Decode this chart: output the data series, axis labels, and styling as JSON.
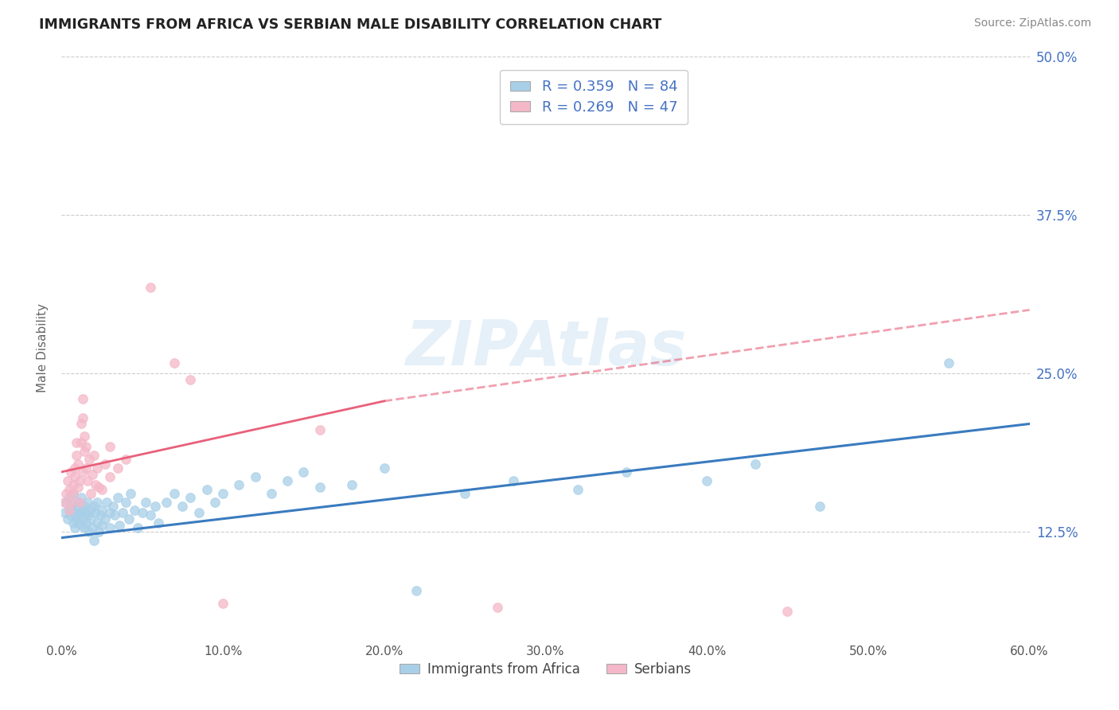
{
  "title": "IMMIGRANTS FROM AFRICA VS SERBIAN MALE DISABILITY CORRELATION CHART",
  "source": "Source: ZipAtlas.com",
  "ylabel": "Male Disability",
  "legend_bottom": [
    "Immigrants from Africa",
    "Serbians"
  ],
  "blue_R": 0.359,
  "blue_N": 84,
  "pink_R": 0.269,
  "pink_N": 47,
  "xlim": [
    0.0,
    0.6
  ],
  "ylim": [
    0.04,
    0.5
  ],
  "yticks": [
    0.125,
    0.25,
    0.375,
    0.5
  ],
  "ytick_labels": [
    "12.5%",
    "25.0%",
    "37.5%",
    "50.0%"
  ],
  "xticks": [
    0.0,
    0.1,
    0.2,
    0.3,
    0.4,
    0.5,
    0.6
  ],
  "xtick_labels": [
    "0.0%",
    "10.0%",
    "20.0%",
    "30.0%",
    "40.0%",
    "50.0%",
    "60.0%"
  ],
  "background": "#ffffff",
  "blue_color": "#a8cfe8",
  "pink_color": "#f4b8c8",
  "blue_line_color": "#3a7bbf",
  "pink_line_color": "#e8607a",
  "blue_scatter": [
    [
      0.002,
      0.14
    ],
    [
      0.003,
      0.148
    ],
    [
      0.004,
      0.135
    ],
    [
      0.005,
      0.152
    ],
    [
      0.005,
      0.142
    ],
    [
      0.006,
      0.138
    ],
    [
      0.006,
      0.145
    ],
    [
      0.007,
      0.132
    ],
    [
      0.007,
      0.155
    ],
    [
      0.008,
      0.14
    ],
    [
      0.008,
      0.128
    ],
    [
      0.009,
      0.145
    ],
    [
      0.009,
      0.135
    ],
    [
      0.01,
      0.148
    ],
    [
      0.01,
      0.132
    ],
    [
      0.011,
      0.14
    ],
    [
      0.011,
      0.138
    ],
    [
      0.012,
      0.152
    ],
    [
      0.012,
      0.13
    ],
    [
      0.013,
      0.142
    ],
    [
      0.013,
      0.135
    ],
    [
      0.014,
      0.128
    ],
    [
      0.014,
      0.145
    ],
    [
      0.015,
      0.14
    ],
    [
      0.015,
      0.132
    ],
    [
      0.016,
      0.148
    ],
    [
      0.016,
      0.138
    ],
    [
      0.017,
      0.125
    ],
    [
      0.018,
      0.142
    ],
    [
      0.018,
      0.135
    ],
    [
      0.019,
      0.128
    ],
    [
      0.02,
      0.145
    ],
    [
      0.02,
      0.118
    ],
    [
      0.021,
      0.14
    ],
    [
      0.022,
      0.132
    ],
    [
      0.022,
      0.148
    ],
    [
      0.023,
      0.125
    ],
    [
      0.024,
      0.138
    ],
    [
      0.025,
      0.142
    ],
    [
      0.025,
      0.13
    ],
    [
      0.027,
      0.135
    ],
    [
      0.028,
      0.148
    ],
    [
      0.03,
      0.14
    ],
    [
      0.03,
      0.128
    ],
    [
      0.032,
      0.145
    ],
    [
      0.033,
      0.138
    ],
    [
      0.035,
      0.152
    ],
    [
      0.036,
      0.13
    ],
    [
      0.038,
      0.14
    ],
    [
      0.04,
      0.148
    ],
    [
      0.042,
      0.135
    ],
    [
      0.043,
      0.155
    ],
    [
      0.045,
      0.142
    ],
    [
      0.047,
      0.128
    ],
    [
      0.05,
      0.14
    ],
    [
      0.052,
      0.148
    ],
    [
      0.055,
      0.138
    ],
    [
      0.058,
      0.145
    ],
    [
      0.06,
      0.132
    ],
    [
      0.065,
      0.148
    ],
    [
      0.07,
      0.155
    ],
    [
      0.075,
      0.145
    ],
    [
      0.08,
      0.152
    ],
    [
      0.085,
      0.14
    ],
    [
      0.09,
      0.158
    ],
    [
      0.095,
      0.148
    ],
    [
      0.1,
      0.155
    ],
    [
      0.11,
      0.162
    ],
    [
      0.12,
      0.168
    ],
    [
      0.13,
      0.155
    ],
    [
      0.14,
      0.165
    ],
    [
      0.15,
      0.172
    ],
    [
      0.16,
      0.16
    ],
    [
      0.18,
      0.162
    ],
    [
      0.2,
      0.175
    ],
    [
      0.22,
      0.078
    ],
    [
      0.25,
      0.155
    ],
    [
      0.28,
      0.165
    ],
    [
      0.32,
      0.158
    ],
    [
      0.35,
      0.172
    ],
    [
      0.4,
      0.165
    ],
    [
      0.43,
      0.178
    ],
    [
      0.47,
      0.145
    ],
    [
      0.55,
      0.258
    ]
  ],
  "pink_scatter": [
    [
      0.002,
      0.148
    ],
    [
      0.003,
      0.155
    ],
    [
      0.004,
      0.165
    ],
    [
      0.005,
      0.142
    ],
    [
      0.005,
      0.158
    ],
    [
      0.006,
      0.172
    ],
    [
      0.006,
      0.148
    ],
    [
      0.007,
      0.162
    ],
    [
      0.007,
      0.155
    ],
    [
      0.008,
      0.168
    ],
    [
      0.008,
      0.175
    ],
    [
      0.009,
      0.185
    ],
    [
      0.009,
      0.195
    ],
    [
      0.01,
      0.16
    ],
    [
      0.01,
      0.178
    ],
    [
      0.011,
      0.148
    ],
    [
      0.011,
      0.165
    ],
    [
      0.012,
      0.195
    ],
    [
      0.012,
      0.21
    ],
    [
      0.013,
      0.172
    ],
    [
      0.013,
      0.215
    ],
    [
      0.013,
      0.23
    ],
    [
      0.014,
      0.188
    ],
    [
      0.014,
      0.2
    ],
    [
      0.015,
      0.175
    ],
    [
      0.015,
      0.192
    ],
    [
      0.016,
      0.165
    ],
    [
      0.017,
      0.182
    ],
    [
      0.018,
      0.155
    ],
    [
      0.019,
      0.17
    ],
    [
      0.02,
      0.185
    ],
    [
      0.021,
      0.162
    ],
    [
      0.022,
      0.175
    ],
    [
      0.023,
      0.16
    ],
    [
      0.025,
      0.158
    ],
    [
      0.027,
      0.178
    ],
    [
      0.03,
      0.168
    ],
    [
      0.03,
      0.192
    ],
    [
      0.035,
      0.175
    ],
    [
      0.04,
      0.182
    ],
    [
      0.055,
      0.318
    ],
    [
      0.07,
      0.258
    ],
    [
      0.08,
      0.245
    ],
    [
      0.1,
      0.068
    ],
    [
      0.16,
      0.205
    ],
    [
      0.27,
      0.065
    ],
    [
      0.45,
      0.062
    ]
  ],
  "blue_trendline_solid": [
    [
      0.0,
      0.12
    ],
    [
      0.6,
      0.21
    ]
  ],
  "pink_trendline_solid": [
    [
      0.0,
      0.172
    ],
    [
      0.2,
      0.228
    ]
  ],
  "pink_trendline_dashed": [
    [
      0.2,
      0.228
    ],
    [
      0.6,
      0.3
    ]
  ]
}
